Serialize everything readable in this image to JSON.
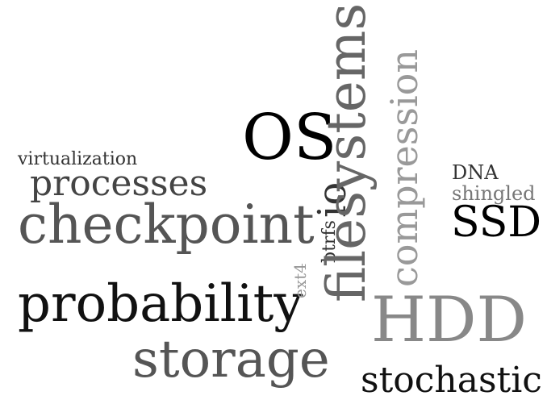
{
  "words": {
    "os": "OS",
    "virtualization": "virtualization",
    "processes": "processes",
    "checkpoint": "checkpoint",
    "probability": "probability",
    "storage": "storage",
    "ext4": "ext4",
    "btrfs": "btrfs",
    "io": "io",
    "filesystems": "filesystems",
    "compression": "compression",
    "dna": "DNA",
    "shingled": "shingled",
    "ssd": "SSD",
    "hdd": "HDD",
    "stochastic": "stochastic"
  },
  "colors": {
    "black": "#000000",
    "dark_gray": "#333333",
    "mid_gray": "#555555",
    "gray": "#777777",
    "light_gray": "#999999"
  }
}
